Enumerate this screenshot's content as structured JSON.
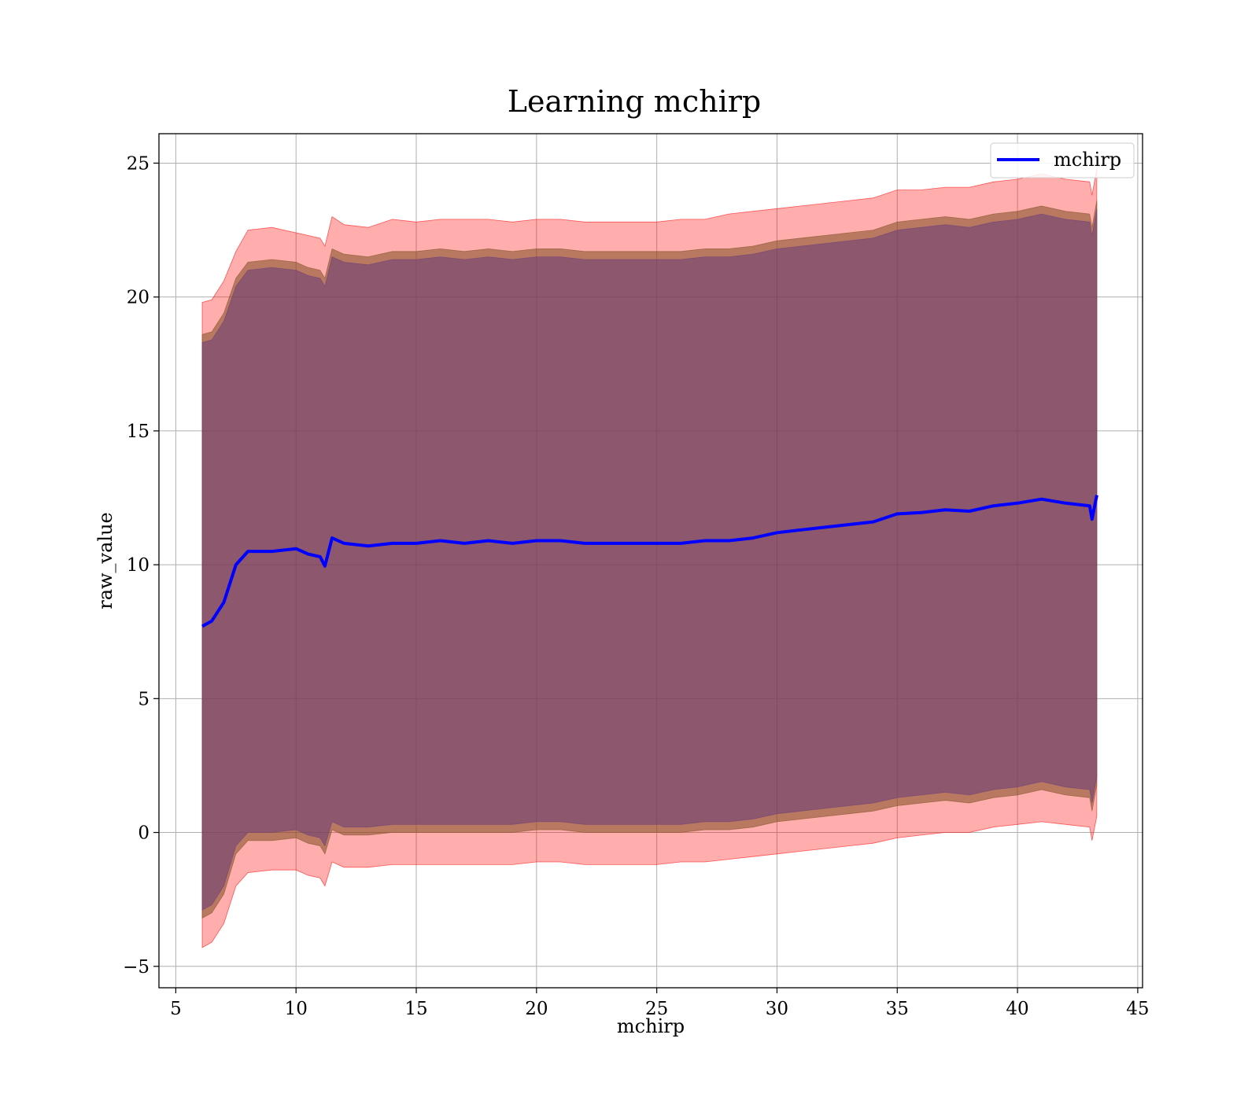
{
  "chart_data": {
    "type": "area",
    "title": "Learning mchirp",
    "xlabel": "mchirp",
    "ylabel": "raw_value",
    "xlim": [
      4.3,
      45.2
    ],
    "ylim": [
      -5.8,
      26.1
    ],
    "xticks": [
      5,
      10,
      15,
      20,
      25,
      30,
      35,
      40,
      45
    ],
    "yticks": [
      -5,
      0,
      5,
      10,
      15,
      20,
      25
    ],
    "ytick_labels": [
      "−5",
      "0",
      "5",
      "10",
      "15",
      "20",
      "25"
    ],
    "grid": true,
    "legend_position": "top-right",
    "series": [
      {
        "name": "mchirp",
        "kind": "line",
        "color": "#0000ff",
        "x": [
          6.1,
          6.5,
          7.0,
          7.5,
          8.0,
          9.0,
          10.0,
          10.5,
          11.0,
          11.2,
          11.5,
          12.0,
          13.0,
          14.0,
          15.0,
          16.0,
          17.0,
          18.0,
          19.0,
          20.0,
          21.0,
          22.0,
          23.0,
          24.0,
          25.0,
          26.0,
          27.0,
          28.0,
          29.0,
          30.0,
          31.0,
          32.0,
          33.0,
          34.0,
          35.0,
          36.0,
          37.0,
          38.0,
          39.0,
          40.0,
          41.0,
          42.0,
          43.0,
          43.1,
          43.3
        ],
        "y": [
          7.7,
          7.9,
          8.6,
          10.0,
          10.5,
          10.5,
          10.6,
          10.4,
          10.3,
          9.95,
          11.0,
          10.8,
          10.7,
          10.8,
          10.8,
          10.9,
          10.8,
          10.9,
          10.8,
          10.9,
          10.9,
          10.8,
          10.8,
          10.8,
          10.8,
          10.8,
          10.9,
          10.9,
          11.0,
          11.2,
          11.3,
          11.4,
          11.5,
          11.6,
          11.9,
          11.95,
          12.05,
          12.0,
          12.2,
          12.3,
          12.45,
          12.3,
          12.2,
          11.7,
          12.6
        ]
      },
      {
        "name": "",
        "kind": "band",
        "color": "#ff0000",
        "x": [
          6.1,
          6.5,
          7.0,
          7.5,
          8.0,
          9.0,
          10.0,
          10.5,
          11.0,
          11.2,
          11.5,
          12.0,
          13.0,
          14.0,
          15.0,
          16.0,
          17.0,
          18.0,
          19.0,
          20.0,
          21.0,
          22.0,
          23.0,
          24.0,
          25.0,
          26.0,
          27.0,
          28.0,
          29.0,
          30.0,
          31.0,
          32.0,
          33.0,
          34.0,
          35.0,
          36.0,
          37.0,
          38.0,
          39.0,
          40.0,
          41.0,
          42.0,
          43.0,
          43.1,
          43.3
        ],
        "upper": [
          19.8,
          19.9,
          20.6,
          21.7,
          22.5,
          22.6,
          22.4,
          22.3,
          22.2,
          21.9,
          23.0,
          22.7,
          22.6,
          22.9,
          22.8,
          22.9,
          22.9,
          22.9,
          22.8,
          22.9,
          22.9,
          22.8,
          22.8,
          22.8,
          22.8,
          22.9,
          22.9,
          23.1,
          23.2,
          23.3,
          23.4,
          23.5,
          23.6,
          23.7,
          24.0,
          24.0,
          24.1,
          24.1,
          24.3,
          24.4,
          24.6,
          24.4,
          24.3,
          23.8,
          24.8
        ],
        "lower": [
          -4.3,
          -4.1,
          -3.4,
          -2.0,
          -1.5,
          -1.4,
          -1.4,
          -1.6,
          -1.7,
          -2.0,
          -1.1,
          -1.3,
          -1.3,
          -1.2,
          -1.2,
          -1.2,
          -1.2,
          -1.2,
          -1.2,
          -1.1,
          -1.1,
          -1.2,
          -1.2,
          -1.2,
          -1.2,
          -1.1,
          -1.1,
          -1.0,
          -0.9,
          -0.8,
          -0.7,
          -0.6,
          -0.5,
          -0.4,
          -0.2,
          -0.1,
          0.0,
          0.0,
          0.2,
          0.3,
          0.4,
          0.3,
          0.2,
          -0.3,
          0.6
        ]
      },
      {
        "name": "",
        "kind": "band",
        "color": "#7f4f23",
        "x": [
          6.1,
          6.5,
          7.0,
          7.5,
          8.0,
          9.0,
          10.0,
          10.5,
          11.0,
          11.2,
          11.5,
          12.0,
          13.0,
          14.0,
          15.0,
          16.0,
          17.0,
          18.0,
          19.0,
          20.0,
          21.0,
          22.0,
          23.0,
          24.0,
          25.0,
          26.0,
          27.0,
          28.0,
          29.0,
          30.0,
          31.0,
          32.0,
          33.0,
          34.0,
          35.0,
          36.0,
          37.0,
          38.0,
          39.0,
          40.0,
          41.0,
          42.0,
          43.0,
          43.1,
          43.3
        ],
        "upper": [
          18.6,
          18.7,
          19.4,
          20.7,
          21.3,
          21.4,
          21.3,
          21.1,
          21.0,
          20.7,
          21.8,
          21.6,
          21.5,
          21.7,
          21.7,
          21.8,
          21.7,
          21.8,
          21.7,
          21.8,
          21.8,
          21.7,
          21.7,
          21.7,
          21.7,
          21.7,
          21.8,
          21.8,
          21.9,
          22.1,
          22.2,
          22.3,
          22.4,
          22.5,
          22.8,
          22.9,
          23.0,
          22.9,
          23.1,
          23.2,
          23.4,
          23.2,
          23.1,
          22.6,
          23.6
        ],
        "lower": [
          -3.2,
          -3.0,
          -2.3,
          -0.8,
          -0.3,
          -0.3,
          -0.2,
          -0.4,
          -0.5,
          -0.8,
          0.1,
          -0.1,
          -0.1,
          0.0,
          0.0,
          0.0,
          0.0,
          0.0,
          0.0,
          0.1,
          0.1,
          0.0,
          0.0,
          0.0,
          0.0,
          0.0,
          0.1,
          0.1,
          0.2,
          0.4,
          0.5,
          0.6,
          0.7,
          0.8,
          1.0,
          1.1,
          1.2,
          1.1,
          1.3,
          1.4,
          1.6,
          1.4,
          1.3,
          0.8,
          1.8
        ]
      },
      {
        "name": "",
        "kind": "band",
        "color": "#6a3d7a",
        "x": [
          6.1,
          6.5,
          7.0,
          7.5,
          8.0,
          9.0,
          10.0,
          10.5,
          11.0,
          11.2,
          11.5,
          12.0,
          13.0,
          14.0,
          15.0,
          16.0,
          17.0,
          18.0,
          19.0,
          20.0,
          21.0,
          22.0,
          23.0,
          24.0,
          25.0,
          26.0,
          27.0,
          28.0,
          29.0,
          30.0,
          31.0,
          32.0,
          33.0,
          34.0,
          35.0,
          36.0,
          37.0,
          38.0,
          39.0,
          40.0,
          41.0,
          42.0,
          43.0,
          43.1,
          43.3
        ],
        "upper": [
          18.3,
          18.4,
          19.1,
          20.4,
          21.0,
          21.1,
          21.0,
          20.8,
          20.7,
          20.4,
          21.5,
          21.3,
          21.2,
          21.4,
          21.4,
          21.5,
          21.4,
          21.5,
          21.4,
          21.5,
          21.5,
          21.4,
          21.4,
          21.4,
          21.4,
          21.4,
          21.5,
          21.5,
          21.6,
          21.8,
          21.9,
          22.0,
          22.1,
          22.2,
          22.5,
          22.6,
          22.7,
          22.6,
          22.8,
          22.9,
          23.1,
          22.9,
          22.8,
          22.3,
          23.3
        ],
        "lower": [
          -2.9,
          -2.7,
          -2.0,
          -0.5,
          0.0,
          0.0,
          0.1,
          -0.1,
          -0.2,
          -0.5,
          0.4,
          0.2,
          0.2,
          0.3,
          0.3,
          0.3,
          0.3,
          0.3,
          0.3,
          0.4,
          0.4,
          0.3,
          0.3,
          0.3,
          0.3,
          0.3,
          0.4,
          0.4,
          0.5,
          0.7,
          0.8,
          0.9,
          1.0,
          1.1,
          1.3,
          1.4,
          1.5,
          1.4,
          1.6,
          1.7,
          1.9,
          1.7,
          1.6,
          1.1,
          2.1
        ]
      }
    ]
  }
}
